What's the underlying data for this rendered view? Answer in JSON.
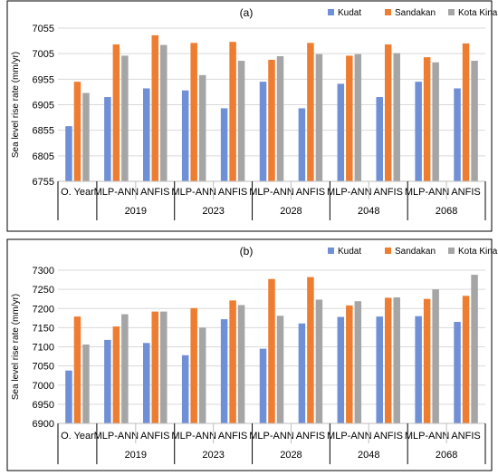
{
  "chart_data": [
    {
      "type": "bar",
      "title": "(a)",
      "ylabel": "Sea level rise rate (mm/yr)",
      "ylim": [
        6755,
        7055
      ],
      "yticks": [
        6755,
        6805,
        6855,
        6905,
        6955,
        7005,
        7055
      ],
      "categories": [
        "O. Year",
        "MLP-ANN",
        "ANFIS",
        "MLP-ANN",
        "ANFIS",
        "MLP-ANN",
        "ANFIS",
        "MLP-ANN",
        "ANFIS",
        "MLP-ANN",
        "ANFIS"
      ],
      "groups": [
        {
          "label": "2019",
          "span": [
            1,
            2
          ]
        },
        {
          "label": "2023",
          "span": [
            3,
            4
          ]
        },
        {
          "label": "2028",
          "span": [
            5,
            6
          ]
        },
        {
          "label": "2048",
          "span": [
            7,
            8
          ]
        },
        {
          "label": "2068",
          "span": [
            9,
            10
          ]
        }
      ],
      "series": [
        {
          "name": "Kudat",
          "color": "#6f8fd6",
          "values": [
            6863,
            6920,
            6937,
            6933,
            6898,
            6950,
            6898,
            6946,
            6920,
            6950,
            6937
          ]
        },
        {
          "name": "Sandakan",
          "color": "#ee7d31",
          "values": [
            6950,
            7023,
            7041,
            7026,
            7028,
            6993,
            7026,
            7001,
            7023,
            6998,
            7025
          ]
        },
        {
          "name": "Kota Kinabalu",
          "color": "#a5a5a5",
          "values": [
            6928,
            7001,
            7022,
            6963,
            6991,
            7000,
            7004,
            7004,
            7006,
            6988,
            6991
          ]
        }
      ],
      "legend": "top-right"
    },
    {
      "type": "bar",
      "title": "(b)",
      "ylabel": "Sea level rise rate (mm/yr)",
      "ylim": [
        6900,
        7300
      ],
      "yticks": [
        6900,
        6950,
        7000,
        7050,
        7100,
        7150,
        7200,
        7250,
        7300
      ],
      "categories": [
        "O. Year",
        "MLP-ANN",
        "ANFIS",
        "MLP-ANN",
        "ANFIS",
        "MLP-ANN",
        "ANFIS",
        "MLP-ANN",
        "ANFIS",
        "MLP-ANN",
        "ANFIS"
      ],
      "groups": [
        {
          "label": "2019",
          "span": [
            1,
            2
          ]
        },
        {
          "label": "2023",
          "span": [
            3,
            4
          ]
        },
        {
          "label": "2028",
          "span": [
            5,
            6
          ]
        },
        {
          "label": "2048",
          "span": [
            7,
            8
          ]
        },
        {
          "label": "2068",
          "span": [
            9,
            10
          ]
        }
      ],
      "series": [
        {
          "name": "Kudat",
          "color": "#6f8fd6",
          "values": [
            7038,
            7118,
            7110,
            7078,
            7172,
            7095,
            7161,
            7178,
            7179,
            7180,
            7165
          ]
        },
        {
          "name": "Sandakan",
          "color": "#ee7d31",
          "values": [
            7179,
            7153,
            7192,
            7201,
            7221,
            7277,
            7282,
            7208,
            7228,
            7225,
            7233
          ]
        },
        {
          "name": "Kota Kinabalu",
          "color": "#a5a5a5",
          "values": [
            7106,
            7185,
            7192,
            7150,
            7209,
            7181,
            7223,
            7219,
            7229,
            7250,
            7288
          ]
        }
      ],
      "legend": "top-right"
    }
  ]
}
